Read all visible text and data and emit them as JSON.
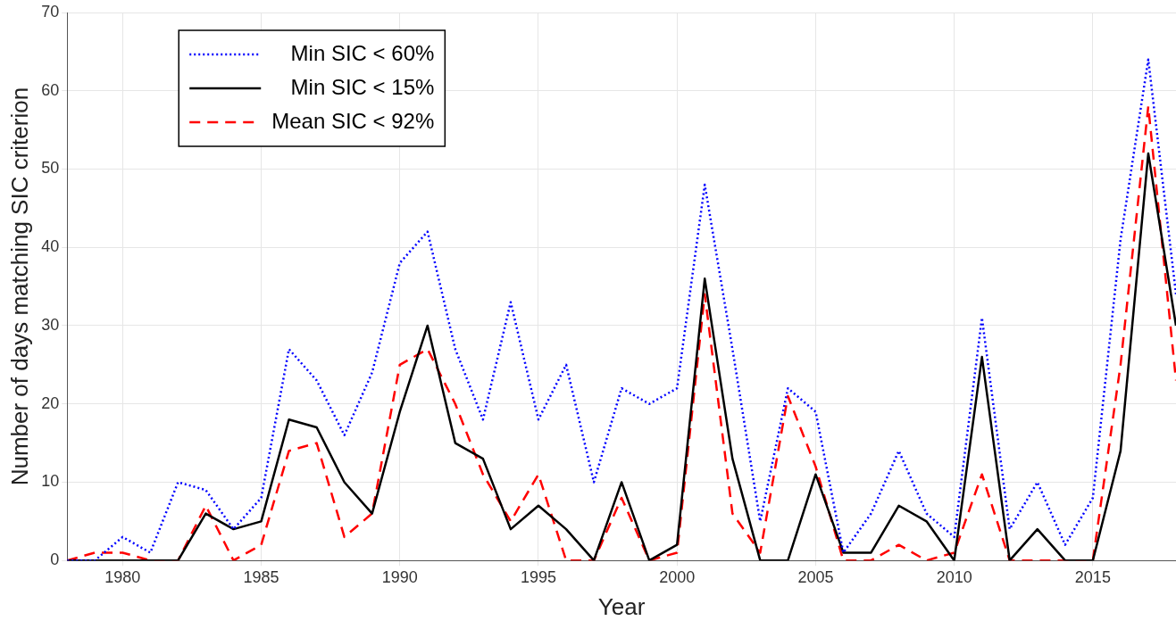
{
  "chart_data": {
    "type": "line",
    "xlabel": "Year",
    "ylabel": "Number of days matching SIC criterion",
    "x": [
      1978,
      1979,
      1980,
      1981,
      1982,
      1983,
      1984,
      1985,
      1986,
      1987,
      1988,
      1989,
      1990,
      1991,
      1992,
      1993,
      1994,
      1995,
      1996,
      1997,
      1998,
      1999,
      2000,
      2001,
      2002,
      2003,
      2004,
      2005,
      2006,
      2007,
      2008,
      2009,
      2010,
      2011,
      2012,
      2013,
      2014,
      2015,
      2016,
      2017,
      2018
    ],
    "series": [
      {
        "name": "Min SIC < 60%",
        "color": "#0000ff",
        "line_style": "dotted",
        "values": [
          0,
          0,
          3,
          1,
          10,
          9,
          4,
          8,
          27,
          23,
          16,
          24,
          38,
          42,
          27,
          18,
          33,
          18,
          25,
          10,
          22,
          20,
          22,
          48,
          27,
          5,
          22,
          19,
          1,
          6,
          14,
          6,
          3,
          31,
          4,
          10,
          2,
          8,
          41,
          64,
          34
        ]
      },
      {
        "name": "Min SIC < 15%",
        "color": "#000000",
        "line_style": "solid",
        "values": [
          0,
          0,
          0,
          0,
          0,
          6,
          4,
          5,
          18,
          17,
          10,
          6,
          19,
          30,
          15,
          13,
          4,
          7,
          4,
          0,
          10,
          0,
          2,
          36,
          13,
          0,
          0,
          11,
          1,
          1,
          7,
          5,
          0,
          26,
          0,
          4,
          0,
          0,
          14,
          52,
          30
        ]
      },
      {
        "name": "Mean SIC < 92%",
        "color": "#ff0000",
        "line_style": "dashed",
        "values": [
          0,
          1,
          1,
          0,
          0,
          7,
          0,
          2,
          14,
          15,
          3,
          6,
          25,
          27,
          20,
          11,
          5,
          11,
          0,
          0,
          8,
          0,
          1,
          34,
          6,
          1,
          21,
          12,
          0,
          0,
          2,
          0,
          1,
          11,
          0,
          0,
          0,
          0,
          25,
          58,
          23
        ]
      }
    ],
    "xlim": [
      1978,
      2018
    ],
    "xticks": [
      1980,
      1985,
      1990,
      1995,
      2000,
      2005,
      2010,
      2015
    ],
    "ylim": [
      0,
      70
    ],
    "yticks": [
      0,
      10,
      20,
      30,
      40,
      50,
      60,
      70
    ],
    "grid": true,
    "legend": "top left",
    "marker": "none"
  }
}
